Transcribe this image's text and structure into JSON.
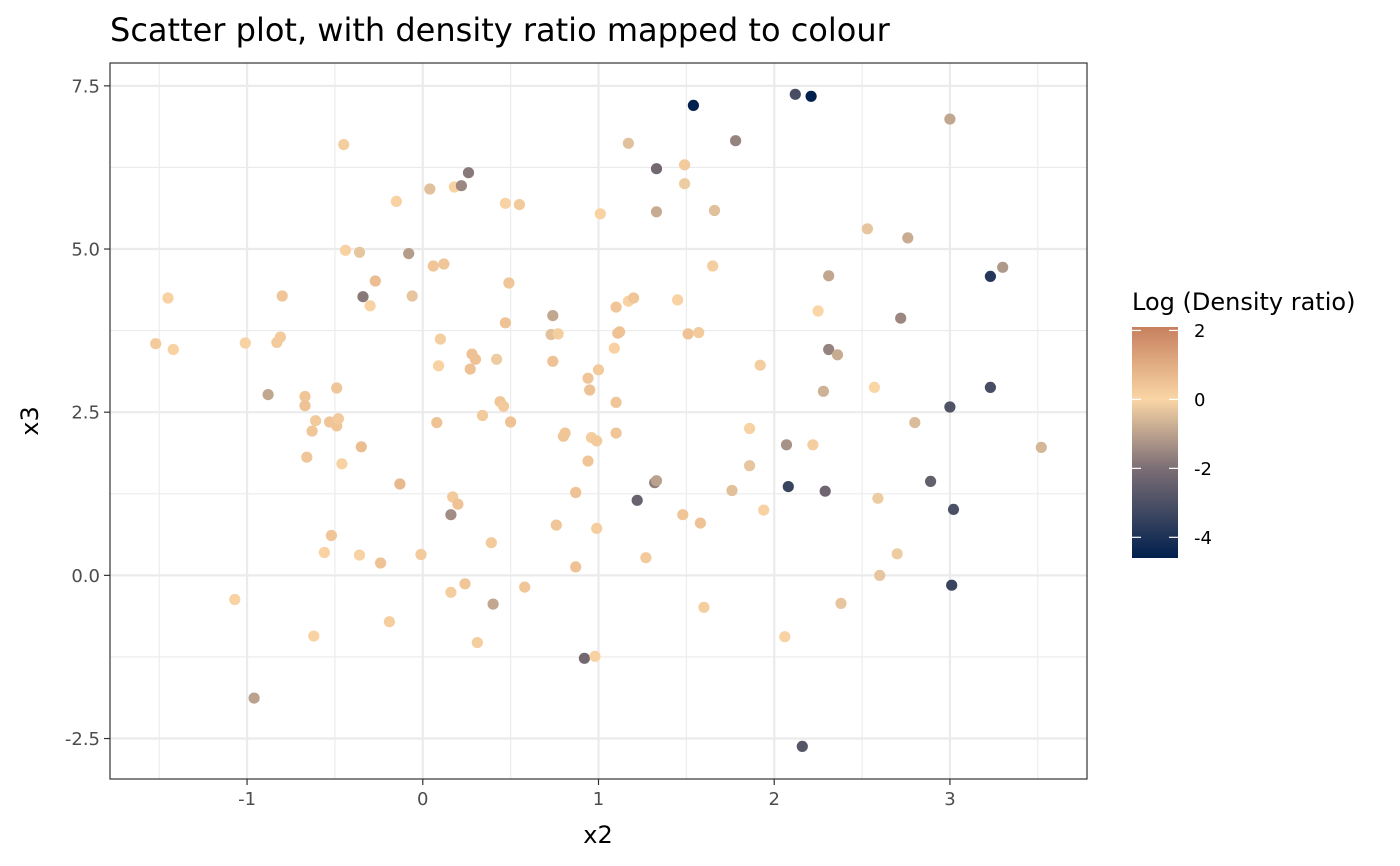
{
  "chart_data": {
    "type": "scatter",
    "title": "Scatter plot, with density ratio mapped to colour",
    "xlabel": "x2",
    "ylabel": "x3",
    "xlim": [
      -1.78,
      3.78
    ],
    "ylim": [
      -3.12,
      7.85
    ],
    "x_ticks": [
      -1,
      0,
      1,
      2,
      3
    ],
    "y_ticks": [
      -2.5,
      0,
      2.5,
      5,
      7.5
    ],
    "x_tick_labels": [
      "-1",
      "0",
      "1",
      "2",
      "3"
    ],
    "y_tick_labels": [
      "-2.5",
      "0.0",
      "2.5",
      "5.0",
      "7.5"
    ],
    "grid": true,
    "legend": {
      "title": "Log (Density ratio)",
      "placement": "right",
      "range": [
        -4.6,
        2.1
      ],
      "breaks": [
        2,
        0,
        -2,
        -4
      ],
      "break_labels": [
        "2",
        "0",
        "-2",
        "-4"
      ],
      "gradient": [
        {
          "value": -4.6,
          "color": "#00204d"
        },
        {
          "value": -2.0,
          "color": "#7c6e75"
        },
        {
          "value": 0.0,
          "color": "#fad6a6"
        },
        {
          "value": 2.1,
          "color": "#c7805d"
        }
      ]
    },
    "points": [
      {
        "x": -1.52,
        "y": 3.55,
        "c": 0.3
      },
      {
        "x": -1.45,
        "y": 4.25,
        "c": 0.1
      },
      {
        "x": -1.42,
        "y": 3.46,
        "c": 0.1
      },
      {
        "x": -1.07,
        "y": -0.37,
        "c": 0.1
      },
      {
        "x": -1.01,
        "y": 3.56,
        "c": 0.1
      },
      {
        "x": -0.96,
        "y": -1.88,
        "c": -1.0
      },
      {
        "x": -0.88,
        "y": 2.77,
        "c": -0.9
      },
      {
        "x": -0.83,
        "y": 3.57,
        "c": 0.3
      },
      {
        "x": -0.81,
        "y": 3.65,
        "c": 0.3
      },
      {
        "x": -0.8,
        "y": 4.28,
        "c": 0.4
      },
      {
        "x": -0.67,
        "y": 2.74,
        "c": 0.4
      },
      {
        "x": -0.67,
        "y": 2.6,
        "c": 0.5
      },
      {
        "x": -0.66,
        "y": 1.81,
        "c": 0.4
      },
      {
        "x": -0.63,
        "y": 2.21,
        "c": 0.4
      },
      {
        "x": -0.62,
        "y": -0.93,
        "c": 0.1
      },
      {
        "x": -0.61,
        "y": 2.37,
        "c": 0.3
      },
      {
        "x": -0.56,
        "y": 0.35,
        "c": 0.1
      },
      {
        "x": -0.53,
        "y": 2.35,
        "c": 0.4
      },
      {
        "x": -0.52,
        "y": 0.61,
        "c": 0.4
      },
      {
        "x": -0.49,
        "y": 2.29,
        "c": 0.4
      },
      {
        "x": -0.49,
        "y": 2.87,
        "c": 0.4
      },
      {
        "x": -0.48,
        "y": 2.4,
        "c": 0.3
      },
      {
        "x": -0.46,
        "y": 1.71,
        "c": 0.1
      },
      {
        "x": -0.45,
        "y": 6.6,
        "c": 0.2
      },
      {
        "x": -0.44,
        "y": 4.98,
        "c": 0.1
      },
      {
        "x": -0.36,
        "y": 4.95,
        "c": -0.3
      },
      {
        "x": -0.36,
        "y": 0.31,
        "c": 0.1
      },
      {
        "x": -0.35,
        "y": 1.97,
        "c": 0.6
      },
      {
        "x": -0.34,
        "y": 4.27,
        "c": -1.8
      },
      {
        "x": -0.3,
        "y": 4.13,
        "c": 0.1
      },
      {
        "x": -0.27,
        "y": 4.51,
        "c": 0.6
      },
      {
        "x": -0.24,
        "y": 0.19,
        "c": 0.5
      },
      {
        "x": -0.19,
        "y": -0.71,
        "c": 0.2
      },
      {
        "x": -0.15,
        "y": 5.73,
        "c": 0.1
      },
      {
        "x": -0.13,
        "y": 1.4,
        "c": 0.7
      },
      {
        "x": -0.08,
        "y": 4.93,
        "c": -1.1
      },
      {
        "x": -0.06,
        "y": 4.28,
        "c": -0.3
      },
      {
        "x": -0.01,
        "y": 0.32,
        "c": 0.3
      },
      {
        "x": 0.04,
        "y": 5.92,
        "c": -0.4
      },
      {
        "x": 0.06,
        "y": 4.74,
        "c": 0.4
      },
      {
        "x": 0.08,
        "y": 2.34,
        "c": 0.5
      },
      {
        "x": 0.09,
        "y": 3.21,
        "c": 0.1
      },
      {
        "x": 0.1,
        "y": 3.62,
        "c": 0.2
      },
      {
        "x": 0.12,
        "y": 4.77,
        "c": 0.4
      },
      {
        "x": 0.16,
        "y": 0.93,
        "c": -1.4
      },
      {
        "x": 0.16,
        "y": -0.26,
        "c": 0.2
      },
      {
        "x": 0.17,
        "y": 1.2,
        "c": 0.3
      },
      {
        "x": 0.18,
        "y": 5.95,
        "c": 0.1
      },
      {
        "x": 0.2,
        "y": 1.09,
        "c": 0.5
      },
      {
        "x": 0.22,
        "y": 5.97,
        "c": -1.5
      },
      {
        "x": 0.24,
        "y": -0.13,
        "c": 0.4
      },
      {
        "x": 0.26,
        "y": 6.17,
        "c": -1.8
      },
      {
        "x": 0.27,
        "y": 3.16,
        "c": 0.5
      },
      {
        "x": 0.28,
        "y": 3.39,
        "c": 0.5
      },
      {
        "x": 0.3,
        "y": 3.31,
        "c": 0.5
      },
      {
        "x": 0.31,
        "y": -1.03,
        "c": 0.2
      },
      {
        "x": 0.34,
        "y": 2.45,
        "c": 0.3
      },
      {
        "x": 0.39,
        "y": 0.5,
        "c": 0.3
      },
      {
        "x": 0.4,
        "y": -0.44,
        "c": -0.9
      },
      {
        "x": 0.42,
        "y": 3.31,
        "c": -0.2
      },
      {
        "x": 0.44,
        "y": 2.66,
        "c": 0.4
      },
      {
        "x": 0.46,
        "y": 2.59,
        "c": 0.3
      },
      {
        "x": 0.47,
        "y": 3.87,
        "c": 0.5
      },
      {
        "x": 0.47,
        "y": 5.7,
        "c": 0.1
      },
      {
        "x": 0.49,
        "y": 4.48,
        "c": 0.4
      },
      {
        "x": 0.5,
        "y": 2.35,
        "c": 0.5
      },
      {
        "x": 0.55,
        "y": 5.68,
        "c": 0.3
      },
      {
        "x": 0.58,
        "y": -0.18,
        "c": 0.4
      },
      {
        "x": 0.73,
        "y": 3.69,
        "c": -0.4
      },
      {
        "x": 0.74,
        "y": 3.98,
        "c": -0.9
      },
      {
        "x": 0.74,
        "y": 3.28,
        "c": 0.5
      },
      {
        "x": 0.76,
        "y": 0.77,
        "c": 0.4
      },
      {
        "x": 0.77,
        "y": 3.7,
        "c": 0.2
      },
      {
        "x": 0.8,
        "y": 2.13,
        "c": 0.4
      },
      {
        "x": 0.81,
        "y": 2.18,
        "c": 0.4
      },
      {
        "x": 0.87,
        "y": 1.27,
        "c": 0.5
      },
      {
        "x": 0.87,
        "y": 0.13,
        "c": 0.5
      },
      {
        "x": 0.92,
        "y": -1.27,
        "c": -2.2
      },
      {
        "x": 0.94,
        "y": 1.75,
        "c": 0.4
      },
      {
        "x": 0.94,
        "y": 3.02,
        "c": 0.4
      },
      {
        "x": 0.95,
        "y": 2.84,
        "c": 0.5
      },
      {
        "x": 0.96,
        "y": 2.11,
        "c": 0.2
      },
      {
        "x": 0.98,
        "y": -1.24,
        "c": 0.1
      },
      {
        "x": 0.99,
        "y": 2.06,
        "c": 0.3
      },
      {
        "x": 0.99,
        "y": 0.72,
        "c": 0.2
      },
      {
        "x": 1.0,
        "y": 3.15,
        "c": 0.3
      },
      {
        "x": 1.01,
        "y": 5.54,
        "c": 0.1
      },
      {
        "x": 1.09,
        "y": 3.48,
        "c": 0.1
      },
      {
        "x": 1.1,
        "y": 2.65,
        "c": 0.4
      },
      {
        "x": 1.1,
        "y": 2.18,
        "c": 0.4
      },
      {
        "x": 1.1,
        "y": 4.11,
        "c": 0.4
      },
      {
        "x": 1.11,
        "y": 3.71,
        "c": 0.5
      },
      {
        "x": 1.12,
        "y": 3.73,
        "c": 0.5
      },
      {
        "x": 1.17,
        "y": 6.62,
        "c": -0.4
      },
      {
        "x": 1.17,
        "y": 4.2,
        "c": 0.1
      },
      {
        "x": 1.2,
        "y": 4.25,
        "c": 0.4
      },
      {
        "x": 1.22,
        "y": 1.15,
        "c": -2.4
      },
      {
        "x": 1.27,
        "y": 0.27,
        "c": 0.3
      },
      {
        "x": 1.32,
        "y": 1.42,
        "c": -1.7
      },
      {
        "x": 1.33,
        "y": 1.45,
        "c": -1.0
      },
      {
        "x": 1.33,
        "y": 6.23,
        "c": -2.2
      },
      {
        "x": 1.33,
        "y": 5.57,
        "c": -0.8
      },
      {
        "x": 1.45,
        "y": 4.22,
        "c": 0.1
      },
      {
        "x": 1.48,
        "y": 0.93,
        "c": 0.4
      },
      {
        "x": 1.49,
        "y": 6.29,
        "c": 0.3
      },
      {
        "x": 1.49,
        "y": 6.0,
        "c": -0.2
      },
      {
        "x": 1.51,
        "y": 3.7,
        "c": 0.5
      },
      {
        "x": 1.54,
        "y": 7.2,
        "c": -4.6
      },
      {
        "x": 1.57,
        "y": 3.72,
        "c": 0.3
      },
      {
        "x": 1.58,
        "y": 0.8,
        "c": 0.5
      },
      {
        "x": 1.6,
        "y": -0.49,
        "c": 0.2
      },
      {
        "x": 1.65,
        "y": 4.74,
        "c": 0.2
      },
      {
        "x": 1.66,
        "y": 5.59,
        "c": -0.4
      },
      {
        "x": 1.76,
        "y": 1.3,
        "c": -0.4
      },
      {
        "x": 1.78,
        "y": 6.66,
        "c": -1.6
      },
      {
        "x": 1.86,
        "y": 2.25,
        "c": 0.1
      },
      {
        "x": 1.86,
        "y": 1.68,
        "c": -0.3
      },
      {
        "x": 1.92,
        "y": 3.22,
        "c": 0.2
      },
      {
        "x": 1.94,
        "y": 1.0,
        "c": 0.1
      },
      {
        "x": 2.06,
        "y": -0.94,
        "c": 0.1
      },
      {
        "x": 2.07,
        "y": 2.0,
        "c": -1.3
      },
      {
        "x": 2.08,
        "y": 1.36,
        "c": -3.4
      },
      {
        "x": 2.12,
        "y": 7.37,
        "c": -3.1
      },
      {
        "x": 2.16,
        "y": -2.62,
        "c": -2.8
      },
      {
        "x": 2.21,
        "y": 7.34,
        "c": -4.6
      },
      {
        "x": 2.22,
        "y": 2.0,
        "c": 0.2
      },
      {
        "x": 2.25,
        "y": 4.05,
        "c": 0.0
      },
      {
        "x": 2.28,
        "y": 2.82,
        "c": -0.7
      },
      {
        "x": 2.29,
        "y": 1.29,
        "c": -2.3
      },
      {
        "x": 2.31,
        "y": 4.59,
        "c": -0.9
      },
      {
        "x": 2.31,
        "y": 3.46,
        "c": -1.6
      },
      {
        "x": 2.36,
        "y": 3.38,
        "c": -0.8
      },
      {
        "x": 2.38,
        "y": -0.43,
        "c": -0.3
      },
      {
        "x": 2.53,
        "y": 5.31,
        "c": -0.3
      },
      {
        "x": 2.57,
        "y": 2.88,
        "c": 0.0
      },
      {
        "x": 2.59,
        "y": 1.18,
        "c": -0.2
      },
      {
        "x": 2.6,
        "y": 0.0,
        "c": -0.3
      },
      {
        "x": 2.7,
        "y": 0.33,
        "c": -0.2
      },
      {
        "x": 2.72,
        "y": 3.94,
        "c": -1.5
      },
      {
        "x": 2.76,
        "y": 5.17,
        "c": -0.8
      },
      {
        "x": 2.8,
        "y": 2.34,
        "c": -0.5
      },
      {
        "x": 2.89,
        "y": 1.44,
        "c": -2.5
      },
      {
        "x": 3.0,
        "y": 6.99,
        "c": -0.9
      },
      {
        "x": 3.0,
        "y": 2.58,
        "c": -2.9
      },
      {
        "x": 3.01,
        "y": -0.15,
        "c": -3.4
      },
      {
        "x": 3.02,
        "y": 1.01,
        "c": -3.0
      },
      {
        "x": 3.23,
        "y": 4.58,
        "c": -3.8
      },
      {
        "x": 3.23,
        "y": 2.88,
        "c": -3.1
      },
      {
        "x": 3.3,
        "y": 4.72,
        "c": -1.2
      },
      {
        "x": 3.52,
        "y": 1.96,
        "c": -0.6
      }
    ]
  }
}
